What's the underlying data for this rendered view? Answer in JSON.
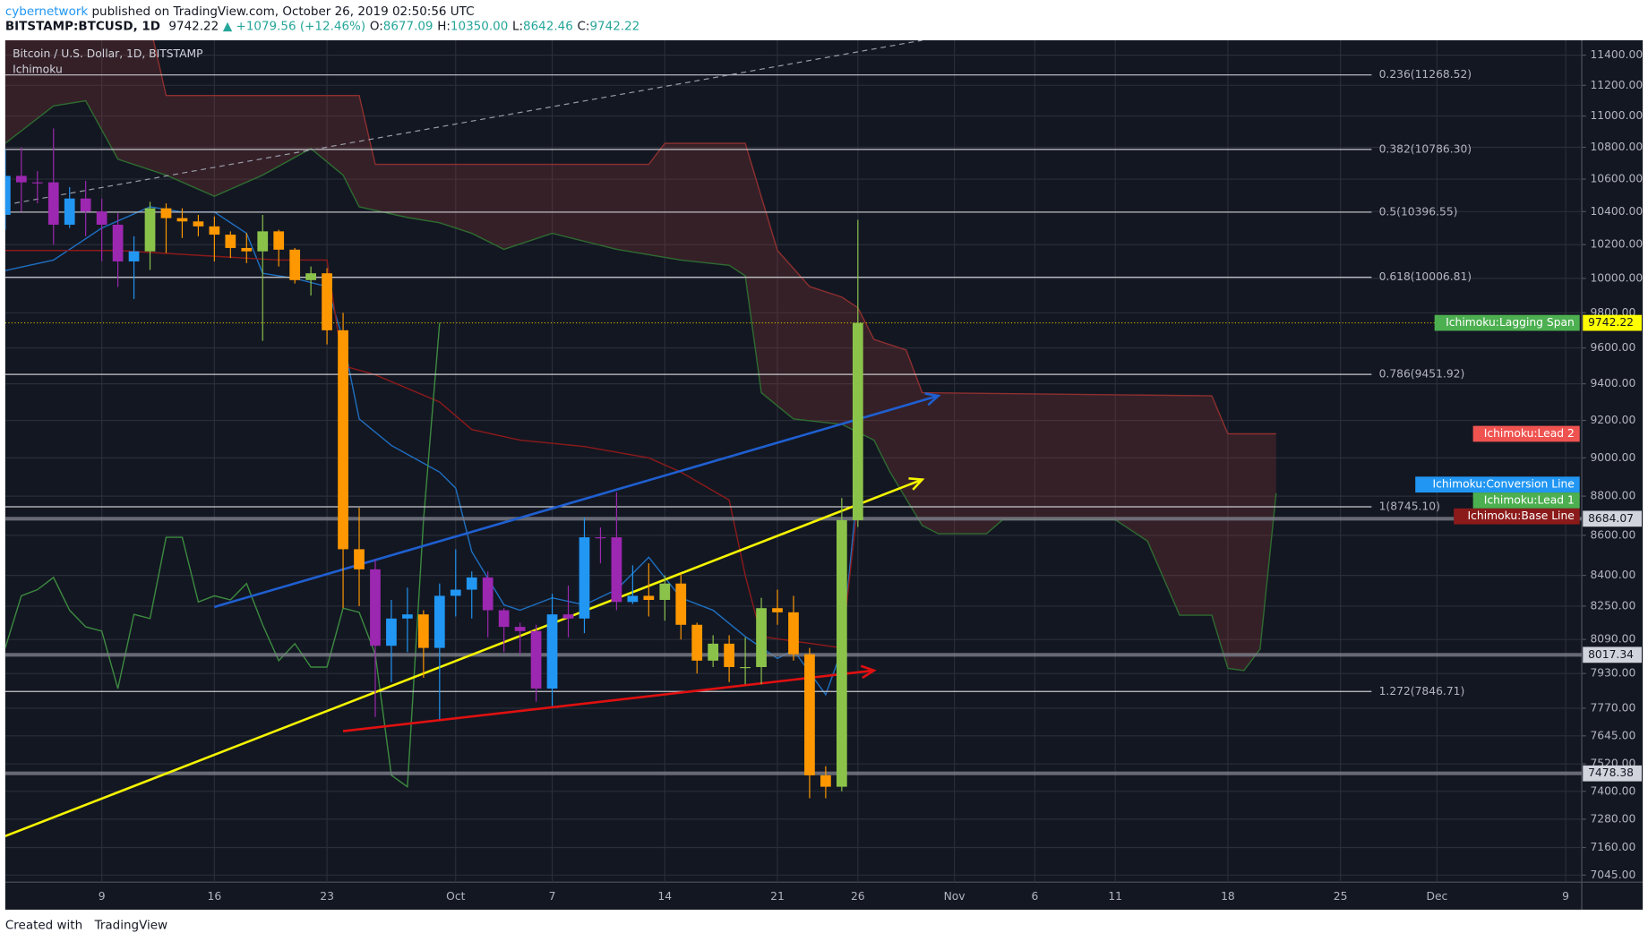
{
  "header": {
    "author": "cybernetwork",
    "published": " published on TradingView.com, October 26, 2019 02:50:56 UTC",
    "symbol": "BITSTAMP:BTCUSD, 1D",
    "price": "9742.22",
    "change": "▲ +1079.56 (+12.46%)",
    "ohlc": [
      {
        "key": "O:",
        "value": "8677.09"
      },
      {
        "key": "H:",
        "value": "10350.00"
      },
      {
        "key": "L:",
        "value": "8642.46"
      },
      {
        "key": "C:",
        "value": "9742.22"
      }
    ]
  },
  "footer": {
    "text": "Created with",
    "brand": "TradingView"
  },
  "chart_data": {
    "type": "candlestick",
    "title": "Bitcoin / U.S. Dollar, 1D, BITSTAMP",
    "subtitle": "Ichimoku",
    "log_scale": true,
    "grid": true,
    "xlim": [
      "2019-09-03",
      "2019-12-10"
    ],
    "ylim": [
      7016,
      11500
    ],
    "xticks": [
      {
        "value": "2019-09-09",
        "label": "9"
      },
      {
        "value": "2019-09-16",
        "label": "16"
      },
      {
        "value": "2019-09-23",
        "label": "23"
      },
      {
        "value": "2019-10-01",
        "label": "Oct"
      },
      {
        "value": "2019-10-07",
        "label": "7"
      },
      {
        "value": "2019-10-14",
        "label": "14"
      },
      {
        "value": "2019-10-21",
        "label": "21"
      },
      {
        "value": "2019-10-26",
        "label": "26"
      },
      {
        "value": "2019-11-01",
        "label": "Nov"
      },
      {
        "value": "2019-11-06",
        "label": "6"
      },
      {
        "value": "2019-11-11",
        "label": "11"
      },
      {
        "value": "2019-11-18",
        "label": "18"
      },
      {
        "value": "2019-11-25",
        "label": "25"
      },
      {
        "value": "2019-12-01",
        "label": "Dec"
      },
      {
        "value": "2019-12-09",
        "label": "9"
      }
    ],
    "yticks": [
      {
        "value": 7045,
        "label": "7045.00"
      },
      {
        "value": 7160,
        "label": "7160.00"
      },
      {
        "value": 7280,
        "label": "7280.00"
      },
      {
        "value": 7400,
        "label": "7400.00"
      },
      {
        "value": 7520,
        "label": "7520.00"
      },
      {
        "value": 7645,
        "label": "7645.00"
      },
      {
        "value": 7770,
        "label": "7770.00"
      },
      {
        "value": 7930,
        "label": "7930.00"
      },
      {
        "value": 8090,
        "label": "8090.00"
      },
      {
        "value": 8250,
        "label": "8250.00"
      },
      {
        "value": 8400,
        "label": "8400.00"
      },
      {
        "value": 8600,
        "label": "8600.00"
      },
      {
        "value": 8800,
        "label": "8800.00"
      },
      {
        "value": 9000,
        "label": "9000.00"
      },
      {
        "value": 9200,
        "label": "9200.00"
      },
      {
        "value": 9400,
        "label": "9400.00"
      },
      {
        "value": 9600,
        "label": "9600.00"
      },
      {
        "value": 9800,
        "label": "9800.00"
      },
      {
        "value": 10000,
        "label": "10000.00"
      },
      {
        "value": 10200,
        "label": "10200.00"
      },
      {
        "value": 10400,
        "label": "10400.00"
      },
      {
        "value": 10600,
        "label": "10600.00"
      },
      {
        "value": 10800,
        "label": "10800.00"
      },
      {
        "value": 11000,
        "label": "11000.00"
      },
      {
        "value": 11200,
        "label": "11200.00"
      },
      {
        "value": 11400,
        "label": "11400.00"
      }
    ],
    "x": [
      "2019-09-03",
      "2019-09-04",
      "2019-09-05",
      "2019-09-06",
      "2019-09-07",
      "2019-09-08",
      "2019-09-09",
      "2019-09-10",
      "2019-09-11",
      "2019-09-12",
      "2019-09-13",
      "2019-09-14",
      "2019-09-15",
      "2019-09-16",
      "2019-09-17",
      "2019-09-18",
      "2019-09-19",
      "2019-09-20",
      "2019-09-21",
      "2019-09-22",
      "2019-09-23",
      "2019-09-24",
      "2019-09-25",
      "2019-09-26",
      "2019-09-27",
      "2019-09-28",
      "2019-09-29",
      "2019-09-30",
      "2019-10-01",
      "2019-10-02",
      "2019-10-03",
      "2019-10-04",
      "2019-10-05",
      "2019-10-06",
      "2019-10-07",
      "2019-10-08",
      "2019-10-09",
      "2019-10-10",
      "2019-10-11",
      "2019-10-12",
      "2019-10-13",
      "2019-10-14",
      "2019-10-15",
      "2019-10-16",
      "2019-10-17",
      "2019-10-18",
      "2019-10-19",
      "2019-10-20",
      "2019-10-21",
      "2019-10-22",
      "2019-10-23",
      "2019-10-24",
      "2019-10-25",
      "2019-10-26"
    ],
    "open": [
      10380,
      10620,
      10580,
      10580,
      10320,
      10480,
      10400,
      10320,
      10100,
      10160,
      10420,
      10360,
      10340,
      10310,
      10260,
      10180,
      10160,
      10280,
      10170,
      9990,
      10030,
      9700,
      8530,
      8430,
      8060,
      8190,
      8210,
      8050,
      8300,
      8330,
      8390,
      8230,
      8150,
      8130,
      7860,
      8210,
      8190,
      8590,
      8590,
      8270,
      8300,
      8280,
      8360,
      8160,
      7990,
      8070,
      7960,
      7960,
      8240,
      8220,
      8020,
      7470,
      7420,
      8677.09
    ],
    "high": [
      10790,
      10800,
      10650,
      10920,
      10550,
      10590,
      10480,
      10390,
      10250,
      10460,
      10450,
      10420,
      10380,
      10370,
      10280,
      10270,
      10380,
      10290,
      10180,
      10070,
      10060,
      9800,
      8740,
      8480,
      8280,
      8340,
      8230,
      8360,
      8530,
      8420,
      8420,
      8240,
      8170,
      8160,
      8310,
      8350,
      8690,
      8640,
      8820,
      8450,
      8460,
      8400,
      8410,
      8170,
      8110,
      8110,
      8100,
      8290,
      8330,
      8300,
      8050,
      7510,
      8790,
      10350
    ],
    "low": [
      10290,
      10400,
      10450,
      10200,
      10300,
      10250,
      10100,
      9950,
      9880,
      10050,
      10150,
      10240,
      10250,
      10100,
      10120,
      10090,
      9640,
      10070,
      9970,
      9900,
      9620,
      8240,
      8250,
      7730,
      7890,
      8030,
      7910,
      7720,
      8200,
      8190,
      8100,
      8030,
      8020,
      7800,
      7780,
      8100,
      8120,
      8460,
      8230,
      8260,
      8200,
      8180,
      8090,
      7930,
      7960,
      7890,
      7880,
      7880,
      8160,
      7990,
      7370,
      7370,
      7400,
      8642.46
    ],
    "close": [
      10620,
      10580,
      10580,
      10320,
      10480,
      10400,
      10320,
      10100,
      10160,
      10420,
      10360,
      10340,
      10310,
      10260,
      10180,
      10160,
      10280,
      10170,
      9990,
      10030,
      9700,
      8530,
      8430,
      8060,
      8190,
      8210,
      8050,
      8300,
      8330,
      8390,
      8230,
      8150,
      8130,
      7860,
      8210,
      8190,
      8590,
      8590,
      8270,
      8300,
      8280,
      8360,
      8160,
      7990,
      8070,
      7960,
      7960,
      8240,
      8220,
      8020,
      7470,
      7420,
      8677.09,
      9742.22
    ],
    "colors": [
      "#2196f3",
      "#9c27b0",
      "#9c27b0",
      "#9c27b0",
      "#2196f3",
      "#9c27b0",
      "#9c27b0",
      "#9c27b0",
      "#2196f3",
      "#8bc34a",
      "#ff9800",
      "#ff9800",
      "#ff9800",
      "#ff9800",
      "#ff9800",
      "#ff9800",
      "#8bc34a",
      "#ff9800",
      "#ff9800",
      "#8bc34a",
      "#ff9800",
      "#ff9800",
      "#ff9800",
      "#9c27b0",
      "#2196f3",
      "#2196f3",
      "#ff9800",
      "#2196f3",
      "#2196f3",
      "#2196f3",
      "#9c27b0",
      "#9c27b0",
      "#9c27b0",
      "#9c27b0",
      "#2196f3",
      "#9c27b0",
      "#2196f3",
      "#9c27b0",
      "#9c27b0",
      "#2196f3",
      "#ff9800",
      "#8bc34a",
      "#ff9800",
      "#ff9800",
      "#8bc34a",
      "#ff9800",
      "#8bc34a",
      "#8bc34a",
      "#ff9800",
      "#ff9800",
      "#ff9800",
      "#ff9800",
      "#8bc34a",
      "#8bc34a"
    ],
    "series": [
      {
        "name": "Ichimoku:Lead 1",
        "color": "#4caf50",
        "line_color": "#2e6b30",
        "x": [
          "2019-09-03",
          "2019-09-06",
          "2019-09-08",
          "2019-09-10",
          "2019-09-13",
          "2019-09-16",
          "2019-09-19",
          "2019-09-22",
          "2019-09-24",
          "2019-09-25",
          "2019-09-28",
          "2019-09-30",
          "2019-10-02",
          "2019-10-04",
          "2019-10-07",
          "2019-10-11",
          "2019-10-15",
          "2019-10-18",
          "2019-10-19",
          "2019-10-20",
          "2019-10-22",
          "2019-10-25",
          "2019-10-27",
          "2019-10-28",
          "2019-10-30",
          "2019-10-31",
          "2019-11-03",
          "2019-11-04",
          "2019-11-11",
          "2019-11-13",
          "2019-11-15",
          "2019-11-17",
          "2019-11-18",
          "2019-11-19",
          "2019-11-20",
          "2019-11-21"
        ],
        "values": [
          10825,
          11065,
          11099,
          10725,
          10625,
          10494,
          10625,
          10792,
          10625,
          10429,
          10364,
          10332,
          10268,
          10172,
          10268,
          10172,
          10108,
          10077,
          10015,
          9351,
          9208,
          9179,
          9094,
          8925,
          8650,
          8608,
          8608,
          8679,
          8679,
          8571,
          8206,
          8206,
          7954,
          7944,
          8044,
          8815
        ]
      },
      {
        "name": "Ichimoku:Lead 2",
        "color": "#ef5350",
        "line_color": "#8e2f2f",
        "x": [
          "2019-09-03",
          "2019-09-12",
          "2019-09-13",
          "2019-09-25",
          "2019-09-26",
          "2019-10-13",
          "2019-10-14",
          "2019-10-19",
          "2019-10-21",
          "2019-10-23",
          "2019-10-25",
          "2019-10-26",
          "2019-10-27",
          "2019-10-29",
          "2019-10-30",
          "2019-11-17",
          "2019-11-18",
          "2019-11-21"
        ],
        "values": [
          11600,
          11600,
          11133,
          11133,
          10692,
          10692,
          10825,
          10825,
          10165,
          9952,
          9891,
          9829,
          9648,
          9588,
          9351,
          9334,
          9128,
          9128
        ]
      },
      {
        "name": "Ichimoku:Conversion Line",
        "color": "#2196f3",
        "line_color": "#1e6fc0",
        "x": [
          "2019-09-03",
          "2019-09-06",
          "2019-09-09",
          "2019-09-12",
          "2019-09-14",
          "2019-09-16",
          "2019-09-18",
          "2019-09-19",
          "2019-09-21",
          "2019-09-23",
          "2019-09-24",
          "2019-09-25",
          "2019-09-27",
          "2019-09-30",
          "2019-10-01",
          "2019-10-02",
          "2019-10-04",
          "2019-10-05",
          "2019-10-07",
          "2019-10-09",
          "2019-10-11",
          "2019-10-13",
          "2019-10-15",
          "2019-10-17",
          "2019-10-19",
          "2019-10-21",
          "2019-10-22",
          "2019-10-24",
          "2019-10-25",
          "2019-10-26"
        ],
        "values": [
          10046,
          10108,
          10300,
          10429,
          10397,
          10397,
          10268,
          10030,
          10000,
          9952,
          9648,
          9208,
          9066,
          8925,
          8842,
          8518,
          8256,
          8230,
          8290,
          8256,
          8330,
          8490,
          8290,
          8230,
          8104,
          8000,
          8040,
          7832,
          8040,
          8860
        ]
      },
      {
        "name": "Ichimoku:Base Line",
        "color": "#8b1a1a",
        "line_color": "#8b1a1a",
        "x": [
          "2019-09-03",
          "2019-09-10",
          "2019-09-20",
          "2019-09-23",
          "2019-09-24",
          "2019-09-26",
          "2019-09-30",
          "2019-10-02",
          "2019-10-05",
          "2019-10-09",
          "2019-10-13",
          "2019-10-15",
          "2019-10-18",
          "2019-10-19",
          "2019-10-20",
          "2019-10-25",
          "2019-10-26"
        ],
        "values": [
          10165,
          10165,
          10108,
          10108,
          9500,
          9450,
          9300,
          9151,
          9094,
          9060,
          9000,
          8925,
          8780,
          8400,
          8104,
          8050,
          8760
        ]
      },
      {
        "name": "Ichimoku:Lagging Span",
        "color": "#4caf50",
        "line_color": "#3c8a3f",
        "x": [
          "2019-09-03",
          "2019-09-04",
          "2019-09-05",
          "2019-09-06",
          "2019-09-07",
          "2019-09-08",
          "2019-09-09",
          "2019-09-10",
          "2019-09-11",
          "2019-09-12",
          "2019-09-13",
          "2019-09-14",
          "2019-09-15",
          "2019-09-16",
          "2019-09-17",
          "2019-09-18",
          "2019-09-19",
          "2019-09-20",
          "2019-09-21",
          "2019-09-22",
          "2019-09-23",
          "2019-09-24",
          "2019-09-25",
          "2019-09-26",
          "2019-09-27",
          "2019-09-28",
          "2019-09-29",
          "2019-09-30"
        ],
        "values": [
          8050,
          8300,
          8330,
          8390,
          8230,
          8150,
          8130,
          7860,
          8210,
          8190,
          8590,
          8590,
          8270,
          8300,
          8280,
          8360,
          8160,
          7990,
          8070,
          7960,
          7960,
          8240,
          8220,
          8020,
          7470,
          7420,
          8677.09,
          9742.22
        ]
      }
    ],
    "cloud_color": "#8e3a3a",
    "fib_levels": [
      {
        "value": 11268.52,
        "label": "0.236(11268.52)"
      },
      {
        "value": 10786.3,
        "label": "0.382(10786.30)"
      },
      {
        "value": 10396.55,
        "label": "0.5(10396.55)"
      },
      {
        "value": 10006.81,
        "label": "0.618(10006.81)"
      },
      {
        "value": 9451.92,
        "label": "0.786(9451.92)"
      },
      {
        "value": 8745.1,
        "label": "1(8745.10)"
      },
      {
        "value": 7846.71,
        "label": "1.272(7846.71)"
      }
    ],
    "levels": [
      {
        "value": 9742.22,
        "label": "9742.22",
        "color": "#ffff00",
        "style": "dotted"
      },
      {
        "value": 8684.07,
        "label": "8684.07",
        "color": "#d1d4dc",
        "style": "thick"
      },
      {
        "value": 8017.34,
        "label": "8017.34",
        "color": "#d1d4dc",
        "style": "thick"
      },
      {
        "value": 7478.38,
        "label": "7478.38",
        "color": "#d1d4dc",
        "style": "thick"
      }
    ],
    "drawings": [
      {
        "color": "#f5f500",
        "x": [
          "2019-09-03",
          "2019-10-30"
        ],
        "values": [
          7208,
          8886
        ],
        "arrow": true
      },
      {
        "color": "#1f5fd0",
        "x": [
          "2019-09-16",
          "2019-10-31"
        ],
        "values": [
          8246,
          9334
        ],
        "arrow": true
      },
      {
        "color": "#e01010",
        "x": [
          "2019-09-24",
          "2019-10-27"
        ],
        "values": [
          7666,
          7944
        ],
        "arrow": true
      },
      {
        "color": "#9a9ea8",
        "x": [
          "2019-09-03",
          "2019-10-30"
        ],
        "values": [
          10441,
          11500
        ],
        "dashed": true
      }
    ]
  }
}
